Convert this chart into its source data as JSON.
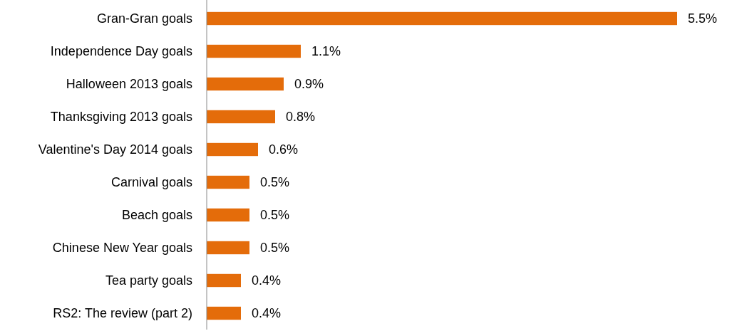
{
  "chart_data": {
    "type": "bar",
    "orientation": "horizontal",
    "categories": [
      "Gran-Gran goals",
      "Independence Day goals",
      "Halloween 2013 goals",
      "Thanksgiving 2013 goals",
      "Valentine's Day 2014 goals",
      "Carnival goals",
      "Beach goals",
      "Chinese New Year goals",
      "Tea party goals",
      "RS2: The review (part 2)"
    ],
    "values": [
      5.5,
      1.1,
      0.9,
      0.8,
      0.6,
      0.5,
      0.5,
      0.5,
      0.4,
      0.4
    ],
    "value_labels": [
      "5.5%",
      "1.1%",
      "0.9%",
      "0.8%",
      "0.6%",
      "0.5%",
      "0.5%",
      "0.5%",
      "0.4%",
      "0.4%"
    ],
    "color": "#e46c0a"
  }
}
